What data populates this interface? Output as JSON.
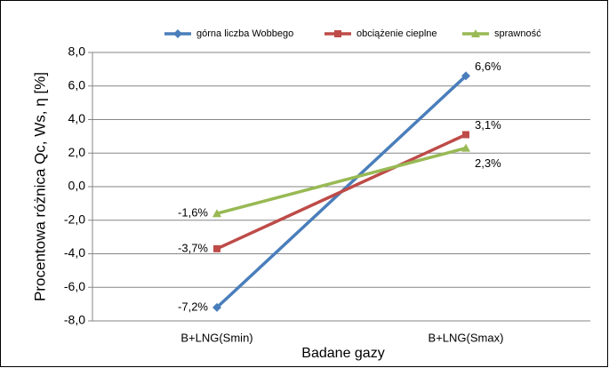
{
  "chart_data": {
    "type": "line",
    "y_label": "Procentowa różnica Qc, Ws, η [%]",
    "x_label": "Badane gazy",
    "categories": [
      "B+LNG(Smin)",
      "B+LNG(Smax)"
    ],
    "series": [
      {
        "name": "górna liczba Wobbego",
        "color": "#4a7ebb",
        "marker": "diamond",
        "values": [
          -7.2,
          6.6
        ],
        "value_labels": [
          "-7,2%",
          "6,6%"
        ]
      },
      {
        "name": "obciążenie cieplne",
        "color": "#be4b48",
        "marker": "square",
        "values": [
          -3.7,
          3.1
        ],
        "value_labels": [
          "-3,7%",
          "3,1%"
        ]
      },
      {
        "name": "sprawność",
        "color": "#98b954",
        "marker": "triangle",
        "values": [
          -1.6,
          2.3
        ],
        "value_labels": [
          "-1,6%",
          "2,3%"
        ]
      }
    ],
    "ylim": [
      -8,
      8
    ],
    "yticks": [
      {
        "value": -8,
        "label": "-8,0"
      },
      {
        "value": -6,
        "label": "-6,0"
      },
      {
        "value": -4,
        "label": "-4,0"
      },
      {
        "value": -2,
        "label": "-2,0"
      },
      {
        "value": 0,
        "label": "0,0"
      },
      {
        "value": 2,
        "label": "2,0"
      },
      {
        "value": 4,
        "label": "4,0"
      },
      {
        "value": 6,
        "label": "6,0"
      },
      {
        "value": 8,
        "label": "8,0"
      }
    ],
    "grid": true,
    "legend": "top"
  }
}
